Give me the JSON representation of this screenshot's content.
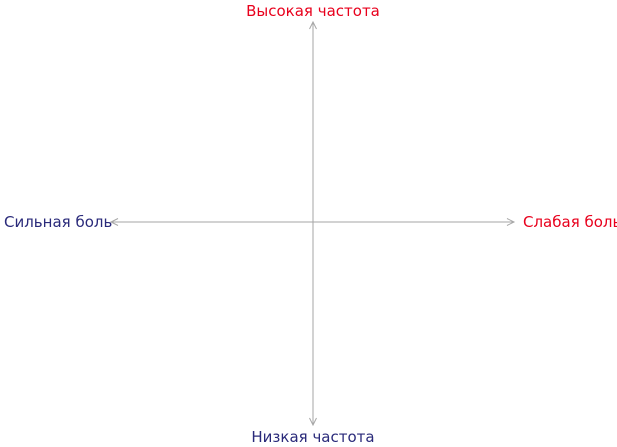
{
  "labels": {
    "top": "Высокая частота",
    "bottom": "Низкая частота",
    "left": "Сильная боль",
    "right": "Слабая боль"
  },
  "colors": {
    "top": "#e8001c",
    "right": "#e8001c",
    "bottom": "#2a2a7a",
    "left": "#2a2a7a",
    "axis": "#a6a6a6"
  }
}
